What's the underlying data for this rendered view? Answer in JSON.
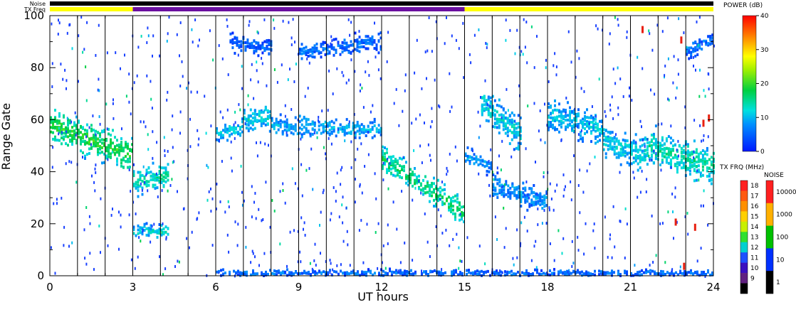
{
  "chart_data": {
    "type": "heatmap",
    "xlabel": "UT hours",
    "ylabel": "Range Gate",
    "xlim": [
      0,
      24
    ],
    "ylim": [
      0,
      100
    ],
    "x_ticks": [
      "0",
      "3",
      "6",
      "9",
      "12",
      "15",
      "18",
      "21",
      "24"
    ],
    "y_ticks": [
      "0",
      "20",
      "40",
      "60",
      "80",
      "100"
    ],
    "hour_boundaries": [
      1,
      2,
      3,
      4,
      5,
      6,
      7,
      8,
      9,
      10,
      11,
      12,
      13,
      14,
      15,
      16,
      17,
      18,
      19,
      20,
      21,
      22,
      23
    ],
    "status_bars": {
      "noise_label": "Noise",
      "txfreq_label": "TX Freq",
      "noise_color": "#000000",
      "txfreq_segments": [
        {
          "from": 0,
          "to": 3,
          "color": "#ffff00"
        },
        {
          "from": 3,
          "to": 15,
          "color": "#6a0fa0"
        },
        {
          "from": 15,
          "to": 24,
          "color": "#ffff00"
        }
      ]
    },
    "echo_bands": [
      {
        "x0": 0.0,
        "x1": 3.0,
        "y0": 58,
        "y1": 46,
        "width": 14,
        "power": 16
      },
      {
        "x0": 3.0,
        "x1": 4.3,
        "y0": 36,
        "y1": 38,
        "width": 12,
        "power": 12
      },
      {
        "x0": 3.0,
        "x1": 4.3,
        "y0": 17,
        "y1": 17,
        "width": 6,
        "power": 10
      },
      {
        "x0": 6.0,
        "x1": 7.0,
        "y0": 54,
        "y1": 58,
        "width": 8,
        "power": 9
      },
      {
        "x0": 7.0,
        "x1": 8.0,
        "y0": 60,
        "y1": 61,
        "width": 10,
        "power": 10
      },
      {
        "x0": 8.0,
        "x1": 12.0,
        "y0": 58,
        "y1": 56,
        "width": 8,
        "power": 8
      },
      {
        "x0": 12.0,
        "x1": 15.0,
        "y0": 45,
        "y1": 24,
        "width": 12,
        "power": 14
      },
      {
        "x0": 15.0,
        "x1": 16.0,
        "y0": 46,
        "y1": 42,
        "width": 8,
        "power": 7
      },
      {
        "x0": 16.0,
        "x1": 18.0,
        "y0": 35,
        "y1": 28,
        "width": 10,
        "power": 7
      },
      {
        "x0": 15.6,
        "x1": 17.0,
        "y0": 66,
        "y1": 54,
        "width": 14,
        "power": 10
      },
      {
        "x0": 18.0,
        "x1": 20.0,
        "y0": 62,
        "y1": 56,
        "width": 14,
        "power": 9
      },
      {
        "x0": 20.0,
        "x1": 21.5,
        "y0": 52,
        "y1": 46,
        "width": 14,
        "power": 10
      },
      {
        "x0": 21.5,
        "x1": 24.0,
        "y0": 50,
        "y1": 42,
        "width": 16,
        "power": 12
      },
      {
        "x0": 6.0,
        "x1": 24.0,
        "y0": 1,
        "y1": 1,
        "width": 3,
        "power": 5
      },
      {
        "x0": 9.0,
        "x1": 12.0,
        "y0": 86,
        "y1": 90,
        "width": 8,
        "power": 5
      },
      {
        "x0": 6.5,
        "x1": 8.0,
        "y0": 90,
        "y1": 88,
        "width": 8,
        "power": 4
      },
      {
        "x0": 23.0,
        "x1": 24.0,
        "y0": 86,
        "y1": 92,
        "width": 8,
        "power": 5
      }
    ],
    "power_colorbar": {
      "title": "POWER (dB)",
      "ticks": [
        "40",
        "30",
        "20",
        "10",
        "0"
      ],
      "range": [
        0,
        40
      ]
    },
    "txfreq_colorbar": {
      "title": "TX FRQ (MHz)",
      "ticks": [
        "18",
        "17",
        "16",
        "15",
        "14",
        "13",
        "12",
        "11",
        "10",
        "9"
      ],
      "colors": [
        "#ff2020",
        "#ff5a10",
        "#ff9000",
        "#ffd000",
        "#c8f000",
        "#30e030",
        "#00d0d0",
        "#1e50ff",
        "#3a10c0",
        "#602080",
        "#000000"
      ]
    },
    "noise_colorbar": {
      "title": "NOISE",
      "ticks": [
        "10000",
        "1000",
        "100",
        "10",
        "1"
      ],
      "colors": [
        "#ff2020",
        "#ffb000",
        "#00c000",
        "#0030ff",
        "#000000"
      ]
    }
  }
}
